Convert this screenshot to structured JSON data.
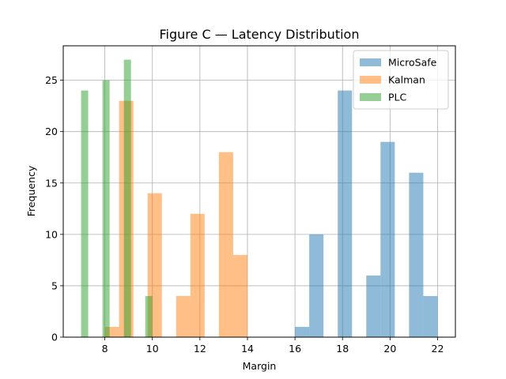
{
  "chart_data": {
    "type": "histogram",
    "title": "Figure C — Latency Distribution",
    "xlabel": "Margin",
    "ylabel": "Frequency",
    "xlim": [
      6.25,
      22.75
    ],
    "ylim": [
      0,
      28.35
    ],
    "xticks": [
      8,
      10,
      12,
      14,
      16,
      18,
      20,
      22
    ],
    "yticks": [
      0,
      5,
      10,
      15,
      20,
      25
    ],
    "grid": true,
    "legend_position": "top-right",
    "series": [
      {
        "name": "MicroSafe",
        "color": "#1f77b4",
        "opacity": 0.5,
        "bins": [
          {
            "x0": 16.0,
            "x1": 16.6,
            "count": 1
          },
          {
            "x0": 16.6,
            "x1": 17.2,
            "count": 10
          },
          {
            "x0": 17.2,
            "x1": 17.8,
            "count": 0
          },
          {
            "x0": 17.8,
            "x1": 18.4,
            "count": 24
          },
          {
            "x0": 18.4,
            "x1": 19.0,
            "count": 0
          },
          {
            "x0": 19.0,
            "x1": 19.6,
            "count": 6
          },
          {
            "x0": 19.6,
            "x1": 20.2,
            "count": 19
          },
          {
            "x0": 20.2,
            "x1": 20.8,
            "count": 0
          },
          {
            "x0": 20.8,
            "x1": 21.4,
            "count": 16
          },
          {
            "x0": 21.4,
            "x1": 22.0,
            "count": 4
          }
        ]
      },
      {
        "name": "Kalman",
        "color": "#ff7f0e",
        "opacity": 0.5,
        "bins": [
          {
            "x0": 8.0,
            "x1": 8.6,
            "count": 1
          },
          {
            "x0": 8.6,
            "x1": 9.2,
            "count": 23
          },
          {
            "x0": 9.2,
            "x1": 9.8,
            "count": 0
          },
          {
            "x0": 9.8,
            "x1": 10.4,
            "count": 14
          },
          {
            "x0": 10.4,
            "x1": 11.0,
            "count": 0
          },
          {
            "x0": 11.0,
            "x1": 11.6,
            "count": 4
          },
          {
            "x0": 11.6,
            "x1": 12.2,
            "count": 12
          },
          {
            "x0": 12.2,
            "x1": 12.8,
            "count": 0
          },
          {
            "x0": 12.8,
            "x1": 13.4,
            "count": 18
          },
          {
            "x0": 13.4,
            "x1": 14.0,
            "count": 8
          }
        ]
      },
      {
        "name": "PLC",
        "color": "#2ca02c",
        "opacity": 0.5,
        "bins": [
          {
            "x0": 7.0,
            "x1": 7.3,
            "count": 24
          },
          {
            "x0": 7.3,
            "x1": 7.6,
            "count": 0
          },
          {
            "x0": 7.6,
            "x1": 7.9,
            "count": 0
          },
          {
            "x0": 7.9,
            "x1": 8.2,
            "count": 25
          },
          {
            "x0": 8.2,
            "x1": 8.5,
            "count": 0
          },
          {
            "x0": 8.5,
            "x1": 8.8,
            "count": 0
          },
          {
            "x0": 8.8,
            "x1": 9.1,
            "count": 27
          },
          {
            "x0": 9.1,
            "x1": 9.4,
            "count": 0
          },
          {
            "x0": 9.4,
            "x1": 9.7,
            "count": 0
          },
          {
            "x0": 9.7,
            "x1": 10.0,
            "count": 4
          }
        ]
      }
    ]
  }
}
